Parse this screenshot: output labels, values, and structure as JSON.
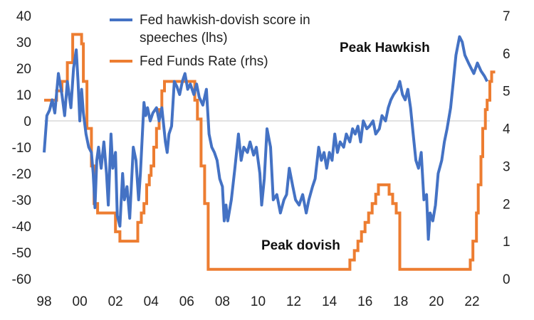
{
  "chart_data": {
    "type": "line",
    "title": "",
    "xlabel": "",
    "ylabel_left": "",
    "ylabel_right": "",
    "x_ticks": [
      "98",
      "00",
      "02",
      "04",
      "06",
      "08",
      "10",
      "12",
      "14",
      "16",
      "18",
      "20",
      "22"
    ],
    "x_tick_years": [
      1998,
      2000,
      2002,
      2004,
      2006,
      2008,
      2010,
      2012,
      2014,
      2016,
      2018,
      2020,
      2022
    ],
    "xlim": [
      1998,
      2023
    ],
    "y_left": {
      "range": [
        -60,
        40
      ],
      "ticks": [
        "40",
        "30",
        "20",
        "10",
        "0",
        "-10",
        "-20",
        "-30",
        "-40",
        "-50",
        "-60"
      ],
      "tick_values": [
        40,
        30,
        20,
        10,
        0,
        -10,
        -20,
        -30,
        -40,
        -50,
        -60
      ]
    },
    "y_right": {
      "range": [
        0,
        7
      ],
      "ticks": [
        "7",
        "6",
        "5",
        "4",
        "3",
        "2",
        "1",
        "0"
      ],
      "tick_values": [
        7,
        6,
        5,
        4,
        3,
        2,
        1,
        0
      ]
    },
    "zero_line": true,
    "grid": false,
    "legend_position": "top",
    "annotations": [
      {
        "text": "Peak Hawkish",
        "x": 2016.5,
        "y_left": 27
      },
      {
        "text": "Peak dovish",
        "x": 2015,
        "y_left": -47
      }
    ],
    "series": [
      {
        "name": "Fed hawkish-dovish score in speeches  (lhs)",
        "legend_line1": "Fed hawkish-dovish score in",
        "legend_line2": "speeches  (lhs)",
        "axis": "left",
        "color": "#4472C4",
        "points": [
          [
            1998.0,
            -12
          ],
          [
            1998.15,
            2
          ],
          [
            1998.3,
            4
          ],
          [
            1998.45,
            8
          ],
          [
            1998.6,
            3
          ],
          [
            1998.8,
            18
          ],
          [
            1999.0,
            10
          ],
          [
            1999.15,
            2
          ],
          [
            1999.3,
            15
          ],
          [
            1999.5,
            5
          ],
          [
            1999.65,
            20
          ],
          [
            1999.8,
            27
          ],
          [
            1999.9,
            15
          ],
          [
            2000.0,
            0
          ],
          [
            2000.1,
            12
          ],
          [
            2000.2,
            3
          ],
          [
            2000.35,
            -5
          ],
          [
            2000.5,
            -10
          ],
          [
            2000.65,
            -12
          ],
          [
            2000.75,
            -20
          ],
          [
            2000.85,
            -33
          ],
          [
            2000.95,
            -15
          ],
          [
            2001.05,
            -10
          ],
          [
            2001.2,
            -18
          ],
          [
            2001.35,
            -8
          ],
          [
            2001.5,
            -20
          ],
          [
            2001.6,
            -32
          ],
          [
            2001.75,
            -5
          ],
          [
            2001.85,
            -18
          ],
          [
            2002.0,
            -12
          ],
          [
            2002.1,
            -36
          ],
          [
            2002.25,
            -40
          ],
          [
            2002.4,
            -20
          ],
          [
            2002.5,
            -30
          ],
          [
            2002.65,
            -25
          ],
          [
            2002.8,
            -37
          ],
          [
            2003.0,
            -10
          ],
          [
            2003.15,
            -15
          ],
          [
            2003.3,
            -30
          ],
          [
            2003.4,
            -20
          ],
          [
            2003.6,
            7
          ],
          [
            2003.7,
            2
          ],
          [
            2003.8,
            5
          ],
          [
            2003.95,
            0
          ],
          [
            2004.1,
            3
          ],
          [
            2004.3,
            5
          ],
          [
            2004.45,
            0
          ],
          [
            2004.6,
            5
          ],
          [
            2004.8,
            -8
          ],
          [
            2004.9,
            -12
          ],
          [
            2005.0,
            -5
          ],
          [
            2005.15,
            -2
          ],
          [
            2005.3,
            15
          ],
          [
            2005.45,
            13
          ],
          [
            2005.6,
            10
          ],
          [
            2005.75,
            15
          ],
          [
            2005.9,
            18
          ],
          [
            2006.05,
            12
          ],
          [
            2006.2,
            14
          ],
          [
            2006.4,
            10
          ],
          [
            2006.55,
            14
          ],
          [
            2006.7,
            9
          ],
          [
            2006.9,
            6
          ],
          [
            2007.1,
            12
          ],
          [
            2007.25,
            -5
          ],
          [
            2007.4,
            -10
          ],
          [
            2007.55,
            -12
          ],
          [
            2007.7,
            -15
          ],
          [
            2007.85,
            -22
          ],
          [
            2008.0,
            -25
          ],
          [
            2008.1,
            -38
          ],
          [
            2008.2,
            -32
          ],
          [
            2008.3,
            -38
          ],
          [
            2008.5,
            -30
          ],
          [
            2008.7,
            -18
          ],
          [
            2008.9,
            -5
          ],
          [
            2009.05,
            -15
          ],
          [
            2009.2,
            -10
          ],
          [
            2009.4,
            -12
          ],
          [
            2009.55,
            -8
          ],
          [
            2009.75,
            -13
          ],
          [
            2009.9,
            -10
          ],
          [
            2010.1,
            -20
          ],
          [
            2010.2,
            -32
          ],
          [
            2010.35,
            -22
          ],
          [
            2010.5,
            -3
          ],
          [
            2010.7,
            -10
          ],
          [
            2010.85,
            -30
          ],
          [
            2011.05,
            -28
          ],
          [
            2011.25,
            -35
          ],
          [
            2011.45,
            -30
          ],
          [
            2011.6,
            -28
          ],
          [
            2011.75,
            -18
          ],
          [
            2011.95,
            -25
          ],
          [
            2012.1,
            -30
          ],
          [
            2012.3,
            -32
          ],
          [
            2012.5,
            -28
          ],
          [
            2012.7,
            -35
          ],
          [
            2012.85,
            -30
          ],
          [
            2013.05,
            -25
          ],
          [
            2013.2,
            -22
          ],
          [
            2013.4,
            -10
          ],
          [
            2013.55,
            -15
          ],
          [
            2013.7,
            -12
          ],
          [
            2013.85,
            -18
          ],
          [
            2014.0,
            -12
          ],
          [
            2014.15,
            -15
          ],
          [
            2014.3,
            -5
          ],
          [
            2014.45,
            -12
          ],
          [
            2014.6,
            -8
          ],
          [
            2014.8,
            -10
          ],
          [
            2014.95,
            -5
          ],
          [
            2015.15,
            -8
          ],
          [
            2015.3,
            -3
          ],
          [
            2015.45,
            -5
          ],
          [
            2015.6,
            -2
          ],
          [
            2015.75,
            -8
          ],
          [
            2015.9,
            0
          ],
          [
            2016.1,
            -3
          ],
          [
            2016.25,
            -2
          ],
          [
            2016.45,
            0
          ],
          [
            2016.6,
            -5
          ],
          [
            2016.8,
            -3
          ],
          [
            2016.95,
            2
          ],
          [
            2017.15,
            0
          ],
          [
            2017.3,
            5
          ],
          [
            2017.45,
            8
          ],
          [
            2017.6,
            10
          ],
          [
            2017.8,
            12
          ],
          [
            2017.95,
            15
          ],
          [
            2018.1,
            10
          ],
          [
            2018.25,
            8
          ],
          [
            2018.4,
            12
          ],
          [
            2018.55,
            5
          ],
          [
            2018.7,
            -5
          ],
          [
            2018.85,
            -15
          ],
          [
            2019.0,
            -18
          ],
          [
            2019.15,
            -12
          ],
          [
            2019.3,
            -30
          ],
          [
            2019.45,
            -28
          ],
          [
            2019.55,
            -45
          ],
          [
            2019.65,
            -35
          ],
          [
            2019.8,
            -38
          ],
          [
            2019.95,
            -32
          ],
          [
            2020.1,
            -20
          ],
          [
            2020.3,
            -15
          ],
          [
            2020.45,
            -8
          ],
          [
            2020.6,
            -3
          ],
          [
            2020.8,
            5
          ],
          [
            2020.95,
            15
          ],
          [
            2021.1,
            25
          ],
          [
            2021.3,
            32
          ],
          [
            2021.45,
            30
          ],
          [
            2021.6,
            25
          ],
          [
            2021.8,
            22
          ],
          [
            2021.95,
            20
          ],
          [
            2022.1,
            18
          ],
          [
            2022.3,
            22
          ],
          [
            2022.5,
            19
          ],
          [
            2022.7,
            17
          ],
          [
            2022.85,
            15
          ]
        ]
      },
      {
        "name": "Fed Funds Rate (rhs)",
        "axis": "right",
        "color": "#ED7D31",
        "steps": [
          [
            1998.0,
            4.75
          ],
          [
            1998.7,
            5.0
          ],
          [
            1999.0,
            5.25
          ],
          [
            1999.3,
            5.75
          ],
          [
            1999.6,
            6.5
          ],
          [
            2000.1,
            6.25
          ],
          [
            2000.2,
            5.25
          ],
          [
            2000.4,
            4.0
          ],
          [
            2000.65,
            3.0
          ],
          [
            2000.8,
            2.0
          ],
          [
            2001.0,
            1.75
          ],
          [
            2002.0,
            1.25
          ],
          [
            2002.25,
            1.0
          ],
          [
            2003.0,
            1.0
          ],
          [
            2003.25,
            1.5
          ],
          [
            2003.45,
            1.75
          ],
          [
            2003.6,
            2.0
          ],
          [
            2003.75,
            2.5
          ],
          [
            2003.9,
            2.75
          ],
          [
            2004.0,
            3.0
          ],
          [
            2004.15,
            3.5
          ],
          [
            2004.3,
            4.0
          ],
          [
            2004.45,
            4.5
          ],
          [
            2004.6,
            5.0
          ],
          [
            2004.75,
            5.25
          ],
          [
            2006.0,
            5.25
          ],
          [
            2006.45,
            4.75
          ],
          [
            2006.6,
            4.25
          ],
          [
            2006.8,
            3.0
          ],
          [
            2007.0,
            2.0
          ],
          [
            2007.2,
            0.25
          ],
          [
            2015.0,
            0.25
          ],
          [
            2015.15,
            0.5
          ],
          [
            2015.4,
            0.75
          ],
          [
            2015.6,
            1.0
          ],
          [
            2015.8,
            1.25
          ],
          [
            2016.0,
            1.5
          ],
          [
            2016.2,
            1.75
          ],
          [
            2016.4,
            2.0
          ],
          [
            2016.6,
            2.25
          ],
          [
            2016.75,
            2.5
          ],
          [
            2017.35,
            2.25
          ],
          [
            2017.55,
            2.0
          ],
          [
            2017.75,
            1.75
          ],
          [
            2017.95,
            0.25
          ],
          [
            2021.9,
            0.5
          ],
          [
            2022.05,
            1.0
          ],
          [
            2022.25,
            1.75
          ],
          [
            2022.35,
            2.5
          ],
          [
            2022.5,
            3.25
          ],
          [
            2022.6,
            4.0
          ],
          [
            2022.75,
            4.5
          ],
          [
            2022.85,
            4.75
          ],
          [
            2023.0,
            5.25
          ],
          [
            2023.1,
            5.5
          ],
          [
            2023.3,
            5.5
          ]
        ]
      }
    ]
  }
}
